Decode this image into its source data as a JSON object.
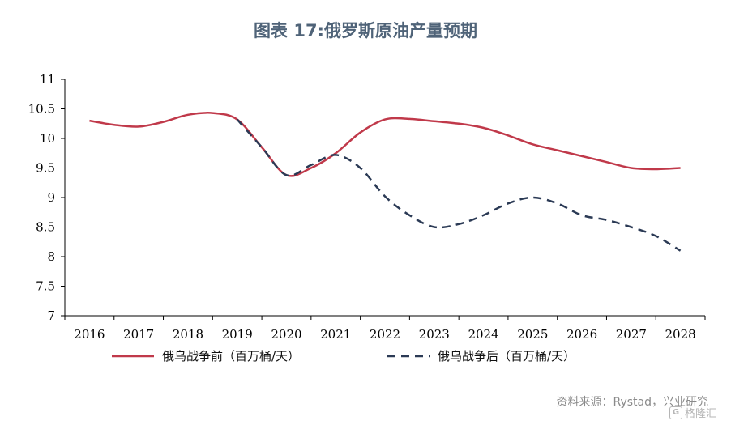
{
  "chart_data": {
    "type": "line",
    "title": "图表 17:俄罗斯原油产量预期",
    "x": [
      "2016",
      "2017",
      "2018",
      "2019",
      "2020",
      "2021",
      "2022",
      "2023",
      "2024",
      "2025",
      "2026",
      "2027",
      "2028"
    ],
    "ylim": [
      7,
      11
    ],
    "yticks": [
      "11",
      "10.5",
      "10",
      "9.5",
      "9",
      "8.5",
      "8",
      "7.5",
      "7"
    ],
    "series": [
      {
        "name": "俄乌战争前（百万桶/天）",
        "color": "#c0394a",
        "dash": false,
        "points": [
          [
            2016,
            10.3
          ],
          [
            2016.5,
            10.23
          ],
          [
            2017,
            10.2
          ],
          [
            2017.5,
            10.28
          ],
          [
            2018,
            10.4
          ],
          [
            2018.5,
            10.43
          ],
          [
            2019,
            10.32
          ],
          [
            2019.5,
            9.85
          ],
          [
            2020,
            9.38
          ],
          [
            2020.5,
            9.5
          ],
          [
            2021,
            9.75
          ],
          [
            2021.5,
            10.1
          ],
          [
            2022,
            10.32
          ],
          [
            2022.5,
            10.33
          ],
          [
            2023,
            10.29
          ],
          [
            2023.5,
            10.25
          ],
          [
            2024,
            10.18
          ],
          [
            2024.5,
            10.05
          ],
          [
            2025,
            9.9
          ],
          [
            2025.5,
            9.8
          ],
          [
            2026,
            9.7
          ],
          [
            2026.5,
            9.6
          ],
          [
            2027,
            9.5
          ],
          [
            2027.5,
            9.48
          ],
          [
            2028,
            9.5
          ]
        ]
      },
      {
        "name": "俄乌战争后（百万桶/天）",
        "color": "#2b3a55",
        "dash": true,
        "points": [
          [
            2019,
            10.32
          ],
          [
            2019.5,
            9.85
          ],
          [
            2020,
            9.38
          ],
          [
            2020.5,
            9.55
          ],
          [
            2021,
            9.72
          ],
          [
            2021.5,
            9.5
          ],
          [
            2022,
            9.02
          ],
          [
            2022.5,
            8.7
          ],
          [
            2023,
            8.5
          ],
          [
            2023.5,
            8.55
          ],
          [
            2024,
            8.7
          ],
          [
            2024.5,
            8.9
          ],
          [
            2025,
            9.0
          ],
          [
            2025.5,
            8.9
          ],
          [
            2026,
            8.7
          ],
          [
            2026.5,
            8.62
          ],
          [
            2027,
            8.5
          ],
          [
            2027.5,
            8.35
          ],
          [
            2028,
            8.1
          ]
        ]
      }
    ],
    "legend_placement": "bottom",
    "grid": false
  },
  "source_text": "资料来源：Rystad，兴业研究",
  "watermark": "格隆汇"
}
